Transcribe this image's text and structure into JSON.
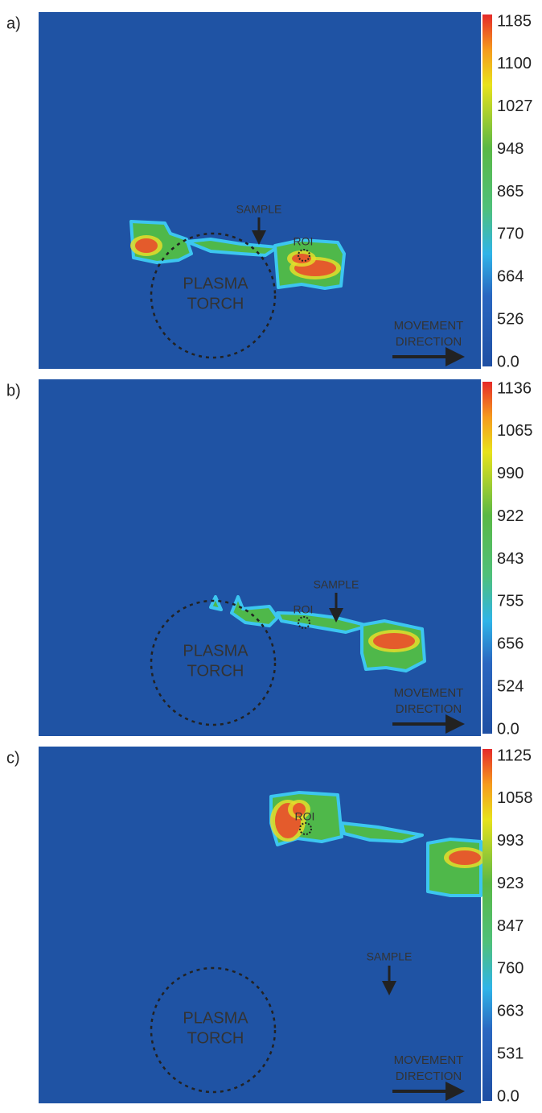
{
  "panels": [
    {
      "label": "a)",
      "sample": "SAMPLE",
      "roi": "ROI",
      "torch": [
        "PLASMA",
        "TORCH"
      ],
      "movement": [
        "MOVEMENT",
        "DIRECTION"
      ],
      "colorbar_ticks": [
        "1185",
        "1100",
        "1027",
        "948",
        "865",
        "770",
        "664",
        "526",
        "0.0"
      ]
    },
    {
      "label": "b)",
      "sample": "SAMPLE",
      "roi": "ROI",
      "torch": [
        "PLASMA",
        "TORCH"
      ],
      "movement": [
        "MOVEMENT",
        "DIRECTION"
      ],
      "colorbar_ticks": [
        "1136",
        "1065",
        "990",
        "922",
        "843",
        "755",
        "656",
        "524",
        "0.0"
      ]
    },
    {
      "label": "c)",
      "sample": "SAMPLE",
      "roi": "ROI",
      "torch": [
        "PLASMA",
        "TORCH"
      ],
      "movement": [
        "MOVEMENT",
        "DIRECTION"
      ],
      "colorbar_ticks": [
        "1125",
        "1058",
        "993",
        "923",
        "847",
        "760",
        "663",
        "531",
        "0.0"
      ]
    }
  ]
}
